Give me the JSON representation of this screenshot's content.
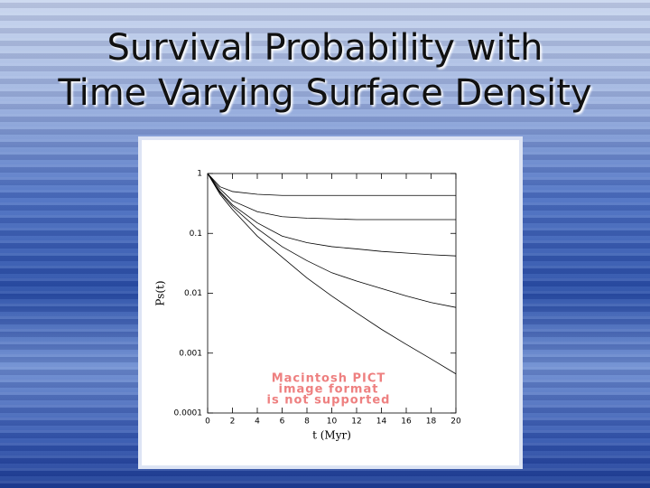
{
  "slide": {
    "title": [
      "Survival Probability with",
      "Time Varying Surface Density"
    ]
  },
  "chart_data": {
    "type": "line",
    "x": [
      0,
      1,
      2,
      4,
      6,
      8,
      10,
      12,
      14,
      16,
      18,
      20
    ],
    "series": [
      {
        "color": "#000000",
        "values": [
          1,
          0.6,
          0.5,
          0.45,
          0.43,
          0.43,
          0.43,
          0.43,
          0.43,
          0.43,
          0.43,
          0.43
        ]
      },
      {
        "color": "#000000",
        "values": [
          1,
          0.55,
          0.35,
          0.23,
          0.19,
          0.18,
          0.175,
          0.17,
          0.17,
          0.17,
          0.17,
          0.17
        ]
      },
      {
        "color": "#000000",
        "values": [
          1,
          0.5,
          0.3,
          0.15,
          0.09,
          0.07,
          0.06,
          0.055,
          0.05,
          0.047,
          0.044,
          0.042
        ]
      },
      {
        "color": "#000000",
        "values": [
          1,
          0.48,
          0.28,
          0.12,
          0.06,
          0.035,
          0.022,
          0.016,
          0.012,
          0.009,
          0.007,
          0.0058
        ]
      },
      {
        "color": "#000000",
        "values": [
          1,
          0.45,
          0.25,
          0.09,
          0.04,
          0.018,
          0.009,
          0.0047,
          0.0025,
          0.0014,
          0.0008,
          0.00045
        ]
      }
    ],
    "xlabel": "t (Myr)",
    "ylabel": "Ps(t)",
    "xlim": [
      0,
      20
    ],
    "xticks": [
      0,
      2,
      4,
      6,
      8,
      10,
      12,
      14,
      16,
      18,
      20
    ],
    "ylim": [
      0.0001,
      1
    ],
    "yticks": [
      1,
      0.1,
      0.01,
      0.001,
      0.0001
    ],
    "ylog": true,
    "annotation": [
      "Macintosh PICT",
      "image format",
      "is not supported"
    ],
    "annotation_color": "#ee8080"
  }
}
